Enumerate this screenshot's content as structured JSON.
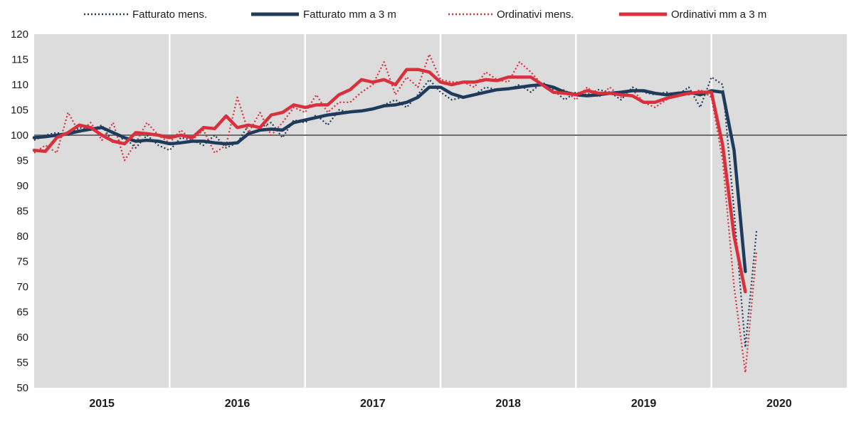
{
  "chart_data": {
    "type": "line",
    "title": "",
    "xlabel": "",
    "ylabel": "",
    "ylim": [
      50,
      120
    ],
    "yticks": [
      50,
      55,
      60,
      65,
      70,
      75,
      80,
      85,
      90,
      95,
      100,
      105,
      110,
      115,
      120
    ],
    "xlim": [
      2014.5,
      2020.5
    ],
    "year_labels": [
      "2015",
      "2016",
      "2017",
      "2018",
      "2019",
      "2020"
    ],
    "year_label_positions": [
      2015.0,
      2016.0,
      2017.0,
      2018.0,
      2019.0,
      2020.0
    ],
    "year_separators": [
      2015.5,
      2016.5,
      2017.5,
      2018.5,
      2019.5
    ],
    "reference_line": 100,
    "background_color": "#dcdcdc",
    "gridlines": false,
    "legend_position": "top",
    "series": [
      {
        "name": "Fatturato mens.",
        "style": "dotted",
        "color": "#1f3b5c",
        "x": [
          2014.5,
          2014.583,
          2014.667,
          2014.75,
          2014.833,
          2014.917,
          2015.0,
          2015.083,
          2015.167,
          2015.25,
          2015.333,
          2015.417,
          2015.5,
          2015.583,
          2015.667,
          2015.75,
          2015.833,
          2015.917,
          2016.0,
          2016.083,
          2016.167,
          2016.25,
          2016.333,
          2016.417,
          2016.5,
          2016.583,
          2016.667,
          2016.75,
          2016.833,
          2016.917,
          2017.0,
          2017.083,
          2017.167,
          2017.25,
          2017.333,
          2017.417,
          2017.5,
          2017.583,
          2017.667,
          2017.75,
          2017.833,
          2017.917,
          2018.0,
          2018.083,
          2018.167,
          2018.25,
          2018.333,
          2018.417,
          2018.5,
          2018.583,
          2018.667,
          2018.75,
          2018.833,
          2018.917,
          2019.0,
          2019.083,
          2019.167,
          2019.25,
          2019.333,
          2019.417,
          2019.5,
          2019.583,
          2019.667,
          2019.75,
          2019.833
        ],
        "values": [
          99.0,
          100.0,
          100.5,
          100.0,
          101.5,
          101.0,
          102.0,
          98.5,
          99.5,
          97.5,
          100.0,
          98.0,
          97.0,
          99.5,
          99.0,
          98.0,
          100.0,
          97.5,
          98.5,
          102.0,
          101.5,
          102.5,
          99.5,
          103.0,
          102.5,
          104.0,
          102.0,
          105.0,
          104.5,
          105.0,
          105.0,
          106.0,
          107.0,
          105.5,
          108.0,
          111.0,
          108.5,
          107.0,
          107.5,
          108.0,
          109.5,
          109.0,
          109.0,
          110.0,
          108.5,
          110.5,
          109.0,
          107.0,
          108.5,
          108.0,
          109.0,
          108.5,
          107.0,
          109.5,
          108.5,
          108.0,
          108.5,
          108.0,
          109.5,
          105.5,
          111.5,
          110.0,
          85.0,
          58.0,
          81.0
        ]
      },
      {
        "name": "Fatturato mm a 3 m",
        "style": "solid",
        "color": "#1f3b5c",
        "x": [
          2014.5,
          2014.583,
          2014.667,
          2014.75,
          2014.833,
          2014.917,
          2015.0,
          2015.083,
          2015.167,
          2015.25,
          2015.333,
          2015.417,
          2015.5,
          2015.583,
          2015.667,
          2015.75,
          2015.833,
          2015.917,
          2016.0,
          2016.083,
          2016.167,
          2016.25,
          2016.333,
          2016.417,
          2016.5,
          2016.583,
          2016.667,
          2016.75,
          2016.833,
          2016.917,
          2017.0,
          2017.083,
          2017.167,
          2017.25,
          2017.333,
          2017.417,
          2017.5,
          2017.583,
          2017.667,
          2017.75,
          2017.833,
          2017.917,
          2018.0,
          2018.083,
          2018.167,
          2018.25,
          2018.333,
          2018.417,
          2018.5,
          2018.583,
          2018.667,
          2018.75,
          2018.833,
          2018.917,
          2019.0,
          2019.083,
          2019.167,
          2019.25,
          2019.333,
          2019.417,
          2019.5,
          2019.583,
          2019.667,
          2019.75
        ],
        "values": [
          99.5,
          99.7,
          100.0,
          100.3,
          100.8,
          101.2,
          101.5,
          100.5,
          99.5,
          98.8,
          99.0,
          98.8,
          98.3,
          98.5,
          98.8,
          98.8,
          98.5,
          98.3,
          98.5,
          100.3,
          101.0,
          101.2,
          101.0,
          102.5,
          103.0,
          103.5,
          104.0,
          104.3,
          104.6,
          104.8,
          105.2,
          105.8,
          106.0,
          106.5,
          107.5,
          109.5,
          109.5,
          108.2,
          107.5,
          108.0,
          108.5,
          109.0,
          109.2,
          109.5,
          109.8,
          110.0,
          109.5,
          108.5,
          108.0,
          107.8,
          108.0,
          108.3,
          108.5,
          108.8,
          108.8,
          108.3,
          108.0,
          108.3,
          108.5,
          108.0,
          108.8,
          108.5,
          97.0,
          73.0
        ]
      },
      {
        "name": "Ordinativi mens.",
        "style": "dotted",
        "color": "#d9303b",
        "x": [
          2014.5,
          2014.583,
          2014.667,
          2014.75,
          2014.833,
          2014.917,
          2015.0,
          2015.083,
          2015.167,
          2015.25,
          2015.333,
          2015.417,
          2015.5,
          2015.583,
          2015.667,
          2015.75,
          2015.833,
          2015.917,
          2016.0,
          2016.083,
          2016.167,
          2016.25,
          2016.333,
          2016.417,
          2016.5,
          2016.583,
          2016.667,
          2016.75,
          2016.833,
          2016.917,
          2017.0,
          2017.083,
          2017.167,
          2017.25,
          2017.333,
          2017.417,
          2017.5,
          2017.583,
          2017.667,
          2017.75,
          2017.833,
          2017.917,
          2018.0,
          2018.083,
          2018.167,
          2018.25,
          2018.333,
          2018.417,
          2018.5,
          2018.583,
          2018.667,
          2018.75,
          2018.833,
          2018.917,
          2019.0,
          2019.083,
          2019.167,
          2019.25,
          2019.333,
          2019.417,
          2019.5,
          2019.583,
          2019.667,
          2019.75,
          2019.833
        ],
        "values": [
          96.5,
          98.0,
          96.5,
          104.5,
          100.5,
          102.5,
          99.0,
          102.5,
          95.0,
          98.5,
          102.5,
          100.0,
          98.5,
          101.0,
          99.0,
          101.0,
          96.5,
          98.0,
          107.5,
          100.5,
          104.5,
          100.0,
          102.5,
          105.5,
          104.5,
          108.0,
          104.5,
          106.5,
          106.5,
          108.5,
          110.0,
          114.5,
          108.0,
          111.5,
          109.5,
          116.0,
          111.0,
          110.5,
          110.5,
          109.5,
          112.5,
          111.0,
          110.5,
          114.5,
          112.5,
          110.0,
          108.5,
          109.0,
          107.0,
          109.5,
          107.5,
          109.5,
          107.5,
          109.0,
          106.5,
          105.5,
          107.0,
          108.5,
          108.0,
          109.0,
          107.5,
          95.0,
          70.0,
          53.0,
          77.0
        ]
      },
      {
        "name": "Ordinativi mm a 3 m",
        "style": "solid",
        "color": "#d9303b",
        "x": [
          2014.5,
          2014.583,
          2014.667,
          2014.75,
          2014.833,
          2014.917,
          2015.0,
          2015.083,
          2015.167,
          2015.25,
          2015.333,
          2015.417,
          2015.5,
          2015.583,
          2015.667,
          2015.75,
          2015.833,
          2015.917,
          2016.0,
          2016.083,
          2016.167,
          2016.25,
          2016.333,
          2016.417,
          2016.5,
          2016.583,
          2016.667,
          2016.75,
          2016.833,
          2016.917,
          2017.0,
          2017.083,
          2017.167,
          2017.25,
          2017.333,
          2017.417,
          2017.5,
          2017.583,
          2017.667,
          2017.75,
          2017.833,
          2017.917,
          2018.0,
          2018.083,
          2018.167,
          2018.25,
          2018.333,
          2018.417,
          2018.5,
          2018.583,
          2018.667,
          2018.75,
          2018.833,
          2018.917,
          2019.0,
          2019.083,
          2019.167,
          2019.25,
          2019.333,
          2019.417,
          2019.5,
          2019.583,
          2019.667,
          2019.75
        ],
        "values": [
          97.0,
          96.8,
          99.5,
          100.5,
          102.0,
          101.5,
          100.0,
          98.8,
          98.3,
          100.5,
          100.3,
          100.0,
          99.5,
          100.0,
          99.5,
          101.5,
          101.3,
          103.8,
          101.5,
          102.0,
          101.5,
          104.0,
          104.5,
          106.0,
          105.5,
          106.0,
          106.0,
          108.0,
          109.0,
          111.0,
          110.5,
          111.0,
          110.0,
          113.0,
          113.0,
          112.5,
          110.5,
          110.0,
          110.5,
          110.5,
          111.0,
          110.8,
          111.5,
          111.5,
          111.5,
          110.0,
          108.5,
          108.3,
          108.0,
          108.8,
          108.3,
          108.3,
          108.0,
          107.8,
          106.5,
          106.5,
          107.3,
          107.8,
          108.3,
          108.5,
          108.5,
          98.0,
          80.0,
          69.0
        ]
      }
    ]
  }
}
